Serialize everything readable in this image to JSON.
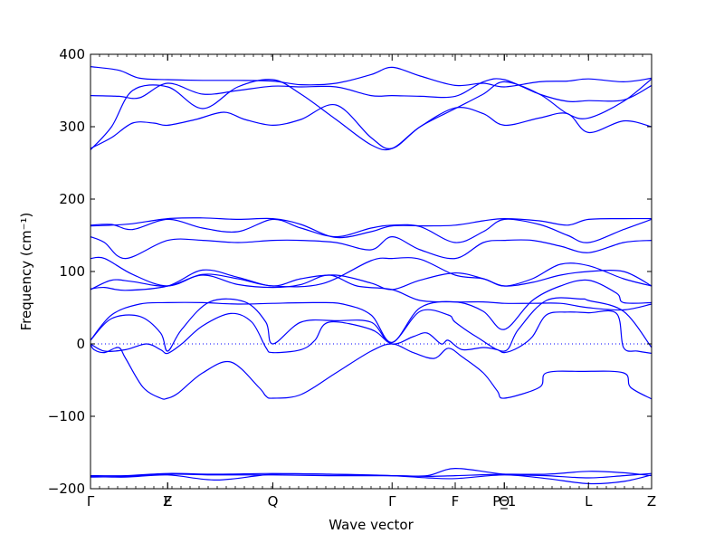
{
  "chart_data": {
    "type": "line",
    "title": "",
    "xlabel": "Wave vector",
    "ylabel": "Frequency (cm⁻¹)",
    "ylim": [
      -200,
      400
    ],
    "yticks": [
      -200,
      -100,
      0,
      100,
      200,
      300,
      400
    ],
    "xlim": [
      0,
      8.0
    ],
    "high_symmetry_points": [
      {
        "label": "Γ",
        "x": 0.0
      },
      {
        "label": "Z",
        "x": 1.1
      },
      {
        "label": "F",
        "x": 1.1
      },
      {
        "label": "Q",
        "x": 2.6
      },
      {
        "label": "Γ",
        "x": 4.3
      },
      {
        "label": "F",
        "x": 5.2
      },
      {
        "label": "P_1",
        "x": 5.9
      },
      {
        "label": "Θ",
        "x": 5.9
      },
      {
        "label": "L",
        "x": 7.1
      },
      {
        "label": "Z",
        "x": 8.0
      }
    ],
    "zero_line": true,
    "line_color": "#0000ff",
    "series": [
      {
        "x": [
          0,
          0.5,
          1.1,
          1.8,
          2.6,
          3.4,
          4.3,
          4.8,
          5.2,
          5.9,
          6.5,
          7.1,
          7.6,
          8.0
        ],
        "values": [
          -182,
          -182,
          -179,
          -180,
          -179,
          -180,
          -182,
          -182,
          -172,
          -180,
          -182,
          -185,
          -182,
          -179
        ]
      },
      {
        "x": [
          0,
          0.5,
          1.1,
          1.8,
          2.6,
          3.4,
          4.3,
          4.8,
          5.2,
          5.9,
          6.5,
          7.1,
          7.6,
          8.0
        ],
        "values": [
          -183,
          -184,
          -181,
          -188,
          -180,
          -180,
          -182,
          -185,
          -186,
          -181,
          -186,
          -193,
          -190,
          -181
        ]
      },
      {
        "x": [
          0,
          0.5,
          1.1,
          1.8,
          2.6,
          3.4,
          4.3,
          4.8,
          5.2,
          5.9,
          6.5,
          7.1,
          7.6,
          8.0
        ],
        "values": [
          -184,
          -183,
          -180,
          -181,
          -181,
          -182,
          -182,
          -183,
          -182,
          -180,
          -180,
          -176,
          -178,
          -182
        ]
      },
      {
        "x": [
          0,
          0.05,
          0.2,
          0.4,
          0.5,
          0.75,
          1.0,
          1.1,
          1.25,
          1.6,
          2.0,
          2.4,
          2.5,
          2.6,
          3.0,
          3.5,
          4.0,
          4.3,
          4.6,
          4.9,
          5.1,
          5.3,
          5.6,
          5.8,
          5.9,
          6.4,
          6.5,
          7.0,
          7.6,
          7.7,
          8.0
        ],
        "values": [
          0,
          -8,
          -12,
          -5,
          -20,
          -60,
          -75,
          -75,
          -68,
          -40,
          -25,
          -60,
          -72,
          -75,
          -70,
          -40,
          -10,
          0,
          -12,
          -20,
          -6,
          -18,
          -40,
          -65,
          -75,
          -60,
          -40,
          -38,
          -40,
          -60,
          -76
        ]
      },
      {
        "x": [
          0,
          0.2,
          0.5,
          0.8,
          1.0,
          1.1,
          1.3,
          1.6,
          2.0,
          2.3,
          2.5,
          2.6,
          3.0,
          3.2,
          3.4,
          4.0,
          4.3,
          4.6,
          4.8,
          5.0,
          5.1,
          5.3,
          5.6,
          5.8,
          5.9,
          6.1,
          6.3,
          6.5,
          6.8,
          7.1,
          7.5,
          7.6,
          7.8,
          8.0
        ],
        "values": [
          0,
          -10,
          -8,
          0,
          -8,
          -13,
          0,
          25,
          42,
          30,
          -5,
          -12,
          -8,
          5,
          30,
          20,
          0,
          10,
          15,
          0,
          5,
          -8,
          -5,
          -8,
          -12,
          -5,
          10,
          40,
          44,
          43,
          42,
          -5,
          -10,
          -13
        ]
      },
      {
        "x": [
          0,
          0.3,
          0.7,
          1.0,
          1.1,
          1.3,
          1.7,
          2.2,
          2.5,
          2.6,
          3.0,
          3.5,
          4.0,
          4.3,
          4.7,
          5.1,
          5.2,
          5.5,
          5.9,
          6.1,
          6.5,
          7.0,
          7.1,
          7.6,
          8.0
        ],
        "values": [
          5,
          35,
          38,
          15,
          -10,
          20,
          58,
          58,
          30,
          0,
          30,
          32,
          30,
          2,
          45,
          40,
          30,
          10,
          -10,
          20,
          60,
          62,
          60,
          45,
          -5
        ]
      },
      {
        "x": [
          0,
          0.3,
          0.7,
          1.1,
          1.6,
          2.1,
          2.6,
          3.2,
          3.6,
          4.0,
          4.3,
          4.7,
          5.2,
          5.6,
          5.9,
          6.3,
          6.7,
          7.1,
          7.5,
          7.6,
          8.0
        ],
        "values": [
          5,
          40,
          55,
          57,
          57,
          55,
          56,
          57,
          55,
          40,
          2,
          50,
          58,
          45,
          20,
          60,
          80,
          88,
          70,
          57,
          57
        ]
      },
      {
        "x": [
          0,
          0.3,
          0.6,
          1.1,
          1.6,
          2.1,
          2.6,
          3.0,
          3.4,
          3.8,
          4.3,
          4.7,
          5.2,
          5.6,
          5.9,
          6.3,
          6.7,
          7.1,
          7.6,
          8.0
        ],
        "values": [
          75,
          88,
          86,
          80,
          95,
          82,
          78,
          82,
          95,
          80,
          75,
          60,
          58,
          58,
          56,
          56,
          56,
          50,
          47,
          55
        ]
      },
      {
        "x": [
          0,
          0.2,
          0.5,
          1.1,
          1.6,
          2.1,
          2.6,
          3.0,
          3.5,
          4.0,
          4.3,
          4.7,
          5.2,
          5.6,
          5.9,
          6.3,
          6.7,
          7.1,
          7.6,
          8.0
        ],
        "values": [
          76,
          78,
          74,
          80,
          102,
          92,
          80,
          90,
          95,
          84,
          75,
          88,
          98,
          90,
          80,
          85,
          95,
          100,
          100,
          80
        ]
      },
      {
        "x": [
          0,
          0.2,
          0.6,
          1.1,
          1.6,
          2.1,
          2.6,
          3.3,
          4.0,
          4.3,
          4.7,
          5.2,
          5.6,
          5.9,
          6.3,
          6.7,
          7.1,
          7.6,
          8.0
        ],
        "values": [
          118,
          118,
          96,
          80,
          96,
          90,
          80,
          83,
          115,
          118,
          117,
          95,
          90,
          80,
          90,
          110,
          108,
          90,
          80
        ]
      },
      {
        "x": [
          0,
          0.2,
          0.5,
          1.1,
          1.6,
          2.1,
          2.6,
          3.0,
          3.5,
          4.0,
          4.3,
          4.7,
          5.2,
          5.6,
          5.9,
          6.3,
          6.7,
          7.1,
          7.6,
          8.0
        ],
        "values": [
          148,
          140,
          118,
          143,
          143,
          140,
          143,
          143,
          140,
          130,
          148,
          130,
          118,
          140,
          143,
          143,
          135,
          126,
          140,
          143
        ]
      },
      {
        "x": [
          0,
          0.3,
          0.6,
          1.1,
          1.6,
          2.1,
          2.6,
          3.0,
          3.5,
          4.0,
          4.3,
          4.7,
          5.2,
          5.6,
          5.9,
          6.4,
          6.8,
          7.1,
          7.6,
          8.0
        ],
        "values": [
          164,
          165,
          158,
          172,
          160,
          155,
          172,
          160,
          148,
          160,
          164,
          162,
          140,
          155,
          172,
          165,
          150,
          140,
          158,
          172
        ]
      },
      {
        "x": [
          0,
          0.3,
          0.6,
          1.1,
          1.6,
          2.1,
          2.6,
          3.0,
          3.5,
          4.0,
          4.3,
          4.8,
          5.2,
          5.6,
          5.9,
          6.4,
          6.8,
          7.1,
          7.6,
          8.0
        ],
        "values": [
          163,
          164,
          166,
          173,
          174,
          172,
          173,
          165,
          147,
          155,
          163,
          163,
          164,
          170,
          173,
          170,
          164,
          172,
          173,
          173
        ]
      },
      {
        "x": [
          0,
          0.3,
          0.6,
          0.9,
          1.1,
          1.5,
          1.9,
          2.2,
          2.6,
          3.0,
          3.5,
          4.0,
          4.3,
          4.7,
          5.2,
          5.6,
          5.9,
          6.4,
          6.8,
          7.1,
          7.6,
          8.0
        ],
        "values": [
          270,
          285,
          305,
          305,
          302,
          310,
          320,
          310,
          302,
          310,
          330,
          285,
          270,
          300,
          326,
          318,
          302,
          312,
          318,
          292,
          308,
          300
        ]
      },
      {
        "x": [
          0,
          0.3,
          0.6,
          1.1,
          1.6,
          2.1,
          2.6,
          3.0,
          3.5,
          4.0,
          4.3,
          4.7,
          5.2,
          5.6,
          5.9,
          6.4,
          6.8,
          7.1,
          7.6,
          8.0
        ],
        "values": [
          268,
          300,
          350,
          355,
          325,
          355,
          365,
          345,
          310,
          275,
          270,
          300,
          325,
          345,
          362,
          345,
          318,
          312,
          335,
          366
        ]
      },
      {
        "x": [
          0,
          0.4,
          0.7,
          1.1,
          1.6,
          2.1,
          2.6,
          3.0,
          3.5,
          4.0,
          4.3,
          4.7,
          5.2,
          5.6,
          5.9,
          6.4,
          6.8,
          7.1,
          7.6,
          8.0
        ],
        "values": [
          343,
          342,
          340,
          360,
          345,
          350,
          356,
          355,
          355,
          343,
          343,
          342,
          342,
          362,
          365,
          345,
          335,
          336,
          337,
          357
        ]
      },
      {
        "x": [
          0,
          0.4,
          0.7,
          1.1,
          1.6,
          2.1,
          2.6,
          3.0,
          3.5,
          4.0,
          4.3,
          4.7,
          5.2,
          5.6,
          5.9,
          6.4,
          6.8,
          7.1,
          7.6,
          8.0
        ],
        "values": [
          383,
          378,
          367,
          365,
          364,
          364,
          363,
          358,
          360,
          372,
          382,
          370,
          357,
          360,
          355,
          362,
          363,
          366,
          362,
          367
        ]
      }
    ]
  }
}
